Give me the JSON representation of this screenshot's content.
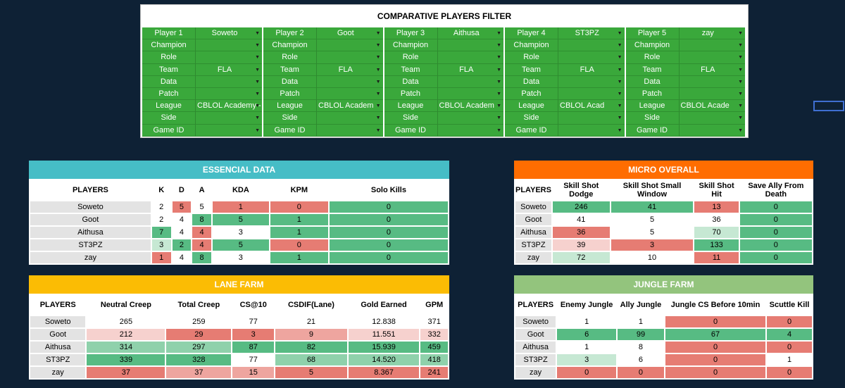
{
  "filter": {
    "title": "COMPARATIVE PLAYERS FILTER",
    "columns": [
      {
        "rows": [
          {
            "label": "Player 1",
            "value": "Soweto"
          },
          {
            "label": "Champion",
            "value": ""
          },
          {
            "label": "Role",
            "value": ""
          },
          {
            "label": "Team",
            "value": "FLA"
          },
          {
            "label": "Data",
            "value": ""
          },
          {
            "label": "Patch",
            "value": ""
          },
          {
            "label": "League",
            "value": "CBLOL Academy -"
          },
          {
            "label": "Side",
            "value": ""
          },
          {
            "label": "Game ID",
            "value": ""
          }
        ]
      },
      {
        "rows": [
          {
            "label": "Player 2",
            "value": "Goot"
          },
          {
            "label": "Champion",
            "value": ""
          },
          {
            "label": "Role",
            "value": ""
          },
          {
            "label": "Team",
            "value": "FLA"
          },
          {
            "label": "Data",
            "value": ""
          },
          {
            "label": "Patch",
            "value": ""
          },
          {
            "label": "League",
            "value": "CBLOL Academ"
          },
          {
            "label": "Side",
            "value": ""
          },
          {
            "label": "Game ID",
            "value": ""
          }
        ]
      },
      {
        "rows": [
          {
            "label": "Player 3",
            "value": "Aithusa"
          },
          {
            "label": "Champion",
            "value": ""
          },
          {
            "label": "Role",
            "value": ""
          },
          {
            "label": "Team",
            "value": "FLA"
          },
          {
            "label": "Data",
            "value": ""
          },
          {
            "label": "Patch",
            "value": ""
          },
          {
            "label": "League",
            "value": "CBLOL Academ"
          },
          {
            "label": "Side",
            "value": ""
          },
          {
            "label": "Game ID",
            "value": ""
          }
        ]
      },
      {
        "rows": [
          {
            "label": "Player 4",
            "value": "ST3PZ"
          },
          {
            "label": "Champion",
            "value": ""
          },
          {
            "label": "Role",
            "value": ""
          },
          {
            "label": "Team",
            "value": "FLA"
          },
          {
            "label": "Data",
            "value": ""
          },
          {
            "label": "Patch",
            "value": ""
          },
          {
            "label": "League",
            "value": "CBLOL Acad"
          },
          {
            "label": "Side",
            "value": ""
          },
          {
            "label": "Game ID",
            "value": ""
          }
        ]
      },
      {
        "rows": [
          {
            "label": "Player 5",
            "value": "zay"
          },
          {
            "label": "Champion",
            "value": ""
          },
          {
            "label": "Role",
            "value": ""
          },
          {
            "label": "Team",
            "value": "FLA"
          },
          {
            "label": "Data",
            "value": ""
          },
          {
            "label": "Patch",
            "value": ""
          },
          {
            "label": "League",
            "value": "CBLOL Acade"
          },
          {
            "label": "Side",
            "value": ""
          },
          {
            "label": "Game ID",
            "value": ""
          }
        ]
      }
    ]
  },
  "colors": {
    "filter_green": "#3aa83b",
    "essencial_header": "#46bdc6",
    "micro_header": "#ff6d01",
    "lane_header": "#fbbc04",
    "jungle_header": "#93c47d"
  },
  "essencial": {
    "title": "ESSENCIAL DATA",
    "headers": [
      "PLAYERS",
      "K",
      "D",
      "A",
      "KDA",
      "KPM",
      "Solo Kills"
    ],
    "rows": [
      {
        "cells": [
          "Soweto",
          "2",
          "5",
          "5",
          "1",
          "0",
          "0"
        ],
        "shade": [
          "pl",
          "w",
          "r1",
          "w",
          "r1",
          "r1",
          "g1"
        ]
      },
      {
        "cells": [
          "Goot",
          "2",
          "4",
          "8",
          "5",
          "1",
          "0"
        ],
        "shade": [
          "pl",
          "w",
          "w",
          "g1",
          "g1",
          "g1",
          "g1"
        ]
      },
      {
        "cells": [
          "Aithusa",
          "7",
          "4",
          "4",
          "3",
          "1",
          "0"
        ],
        "shade": [
          "pl",
          "g1",
          "w",
          "r1",
          "w",
          "g1",
          "g1"
        ]
      },
      {
        "cells": [
          "ST3PZ",
          "3",
          "2",
          "4",
          "5",
          "0",
          "0"
        ],
        "shade": [
          "pl",
          "g3",
          "g1",
          "r1",
          "g1",
          "r1",
          "g1"
        ]
      },
      {
        "cells": [
          "zay",
          "1",
          "4",
          "8",
          "3",
          "1",
          "0"
        ],
        "shade": [
          "pl",
          "r1",
          "w",
          "g1",
          "w",
          "g1",
          "g1"
        ]
      }
    ]
  },
  "micro": {
    "title": "MICRO OVERALL",
    "headers": [
      "PLAYERS",
      "Skill Shot Dodge",
      "Skill Shot Small Window",
      "Skill Shot Hit",
      "Save Ally From Death"
    ],
    "rows": [
      {
        "cells": [
          "Soweto",
          "246",
          "41",
          "13",
          "0"
        ],
        "shade": [
          "pl",
          "g1",
          "g1",
          "r1",
          "g1"
        ]
      },
      {
        "cells": [
          "Goot",
          "41",
          "5",
          "36",
          "0"
        ],
        "shade": [
          "pl",
          "w",
          "w",
          "w",
          "g1"
        ]
      },
      {
        "cells": [
          "Aithusa",
          "36",
          "5",
          "70",
          "0"
        ],
        "shade": [
          "pl",
          "r1",
          "w",
          "g3",
          "g1"
        ]
      },
      {
        "cells": [
          "ST3PZ",
          "39",
          "3",
          "133",
          "0"
        ],
        "shade": [
          "pl",
          "r3",
          "r1",
          "g1",
          "g1"
        ]
      },
      {
        "cells": [
          "zay",
          "72",
          "10",
          "11",
          "0"
        ],
        "shade": [
          "pl",
          "g3",
          "w",
          "r1",
          "g1"
        ]
      }
    ]
  },
  "lane": {
    "title": "LANE FARM",
    "headers": [
      "PLAYERS",
      "Neutral Creep",
      "Total Creep",
      "CS@10",
      "CSDIF(Lane)",
      "Gold Earned",
      "GPM"
    ],
    "rows": [
      {
        "cells": [
          "Soweto",
          "265",
          "259",
          "77",
          "21",
          "12.838",
          "371"
        ],
        "shade": [
          "pl",
          "w",
          "w",
          "w",
          "w",
          "w",
          "w"
        ]
      },
      {
        "cells": [
          "Goot",
          "212",
          "29",
          "3",
          "9",
          "11.551",
          "332"
        ],
        "shade": [
          "pl",
          "r3",
          "r1",
          "r1",
          "r2",
          "r3",
          "r3"
        ]
      },
      {
        "cells": [
          "Aithusa",
          "314",
          "297",
          "87",
          "82",
          "15.939",
          "459"
        ],
        "shade": [
          "pl",
          "g2",
          "g2",
          "g1",
          "g1",
          "g1",
          "g1"
        ]
      },
      {
        "cells": [
          "ST3PZ",
          "339",
          "328",
          "77",
          "68",
          "14.520",
          "418"
        ],
        "shade": [
          "pl",
          "g1",
          "g1",
          "w",
          "g2",
          "g2",
          "g2"
        ]
      },
      {
        "cells": [
          "zay",
          "37",
          "37",
          "15",
          "5",
          "8.367",
          "241"
        ],
        "shade": [
          "pl",
          "r1",
          "r2",
          "r2",
          "r1",
          "r1",
          "r1"
        ]
      }
    ]
  },
  "jungle": {
    "title": "JUNGLE FARM",
    "headers": [
      "PLAYERS",
      "Enemy Jungle",
      "Ally Jungle",
      "Jungle CS Before 10min",
      "Scuttle Kill"
    ],
    "rows": [
      {
        "cells": [
          "Soweto",
          "1",
          "1",
          "0",
          "0"
        ],
        "shade": [
          "pl",
          "w",
          "w",
          "r1",
          "r1"
        ]
      },
      {
        "cells": [
          "Goot",
          "6",
          "99",
          "67",
          "4"
        ],
        "shade": [
          "pl",
          "g1",
          "g1",
          "g1",
          "g1"
        ]
      },
      {
        "cells": [
          "Aithusa",
          "1",
          "8",
          "0",
          "0"
        ],
        "shade": [
          "pl",
          "w",
          "w",
          "r1",
          "r1"
        ]
      },
      {
        "cells": [
          "ST3PZ",
          "3",
          "6",
          "0",
          "1"
        ],
        "shade": [
          "pl",
          "g3",
          "w",
          "r1",
          "w"
        ]
      },
      {
        "cells": [
          "zay",
          "0",
          "0",
          "0",
          "0"
        ],
        "shade": [
          "pl",
          "r1",
          "r1",
          "r1",
          "r1"
        ]
      }
    ]
  }
}
